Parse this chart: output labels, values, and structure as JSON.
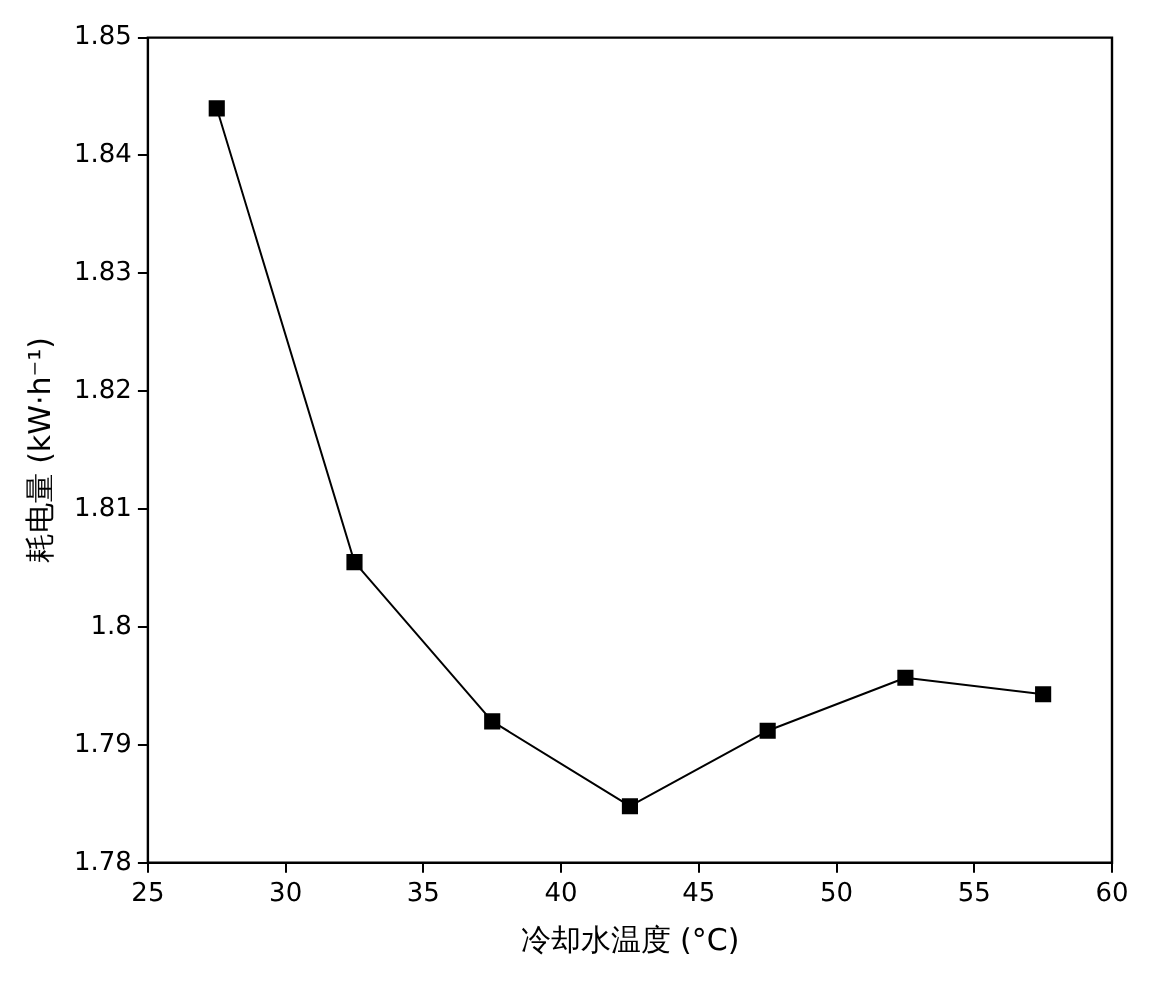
{
  "chart_data": {
    "type": "line",
    "xlabel": "冷却水温度 (°C)",
    "ylabel": "耗电量 (kW·h⁻¹)",
    "x": [
      27.5,
      32.5,
      37.5,
      42.5,
      47.5,
      52.5,
      57.5
    ],
    "series": [
      {
        "color": "#000000",
        "values": [
          1.844,
          1.8055,
          1.792,
          1.7848,
          1.7912,
          1.7957,
          1.7943
        ]
      }
    ],
    "xlim": [
      25,
      60
    ],
    "xticks": [
      25,
      30,
      35,
      40,
      45,
      50,
      55,
      60
    ],
    "ylim": [
      1.78,
      1.85
    ],
    "yticks": [
      1.78,
      1.79,
      1.8,
      1.81,
      1.82,
      1.83,
      1.84,
      1.85
    ],
    "grid": false,
    "legend": false,
    "marker": "square",
    "line_style": "solid"
  }
}
